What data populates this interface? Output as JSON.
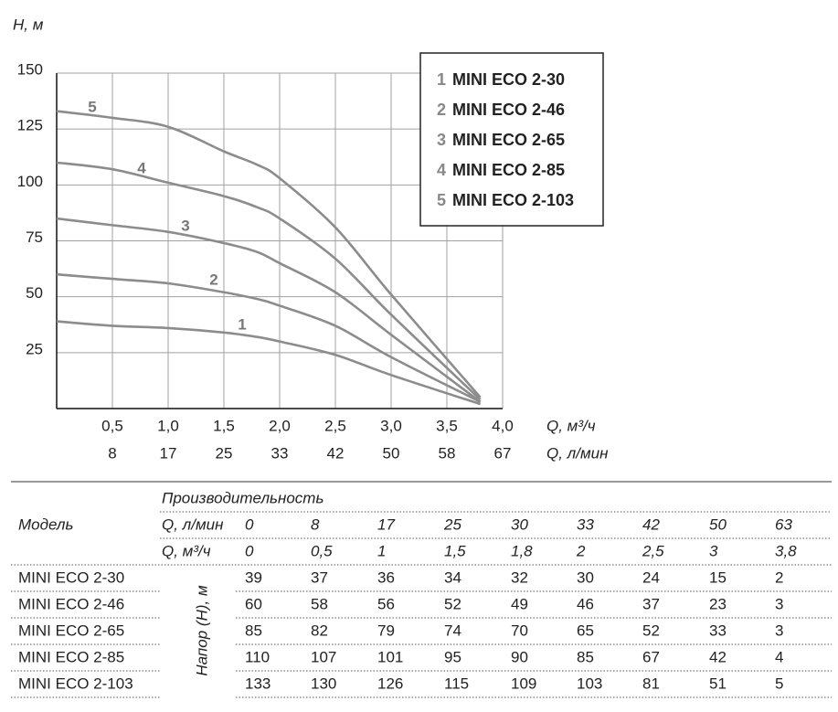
{
  "chart_data": {
    "type": "line",
    "y_label": "H, м",
    "x_label": "Q, м³/ч",
    "x2_label": "Q, л/мин",
    "x": [
      0,
      0.5,
      1,
      1.5,
      1.8,
      2,
      2.5,
      3,
      3.8
    ],
    "series": [
      {
        "label": "1",
        "name": "MINI ECO 2-30",
        "color": "#8c8c8c",
        "values": [
          39,
          37,
          36,
          34,
          32,
          30,
          24,
          15,
          2
        ]
      },
      {
        "label": "2",
        "name": "MINI ECO 2-46",
        "color": "#8c8c8c",
        "values": [
          60,
          58,
          56,
          52,
          49,
          46,
          37,
          23,
          3
        ]
      },
      {
        "label": "3",
        "name": "MINI ECO 2-65",
        "color": "#8c8c8c",
        "values": [
          85,
          82,
          79,
          74,
          70,
          65,
          52,
          33,
          3
        ]
      },
      {
        "label": "4",
        "name": "MINI ECO 2-85",
        "color": "#8c8c8c",
        "values": [
          110,
          107,
          101,
          95,
          90,
          85,
          67,
          42,
          4
        ]
      },
      {
        "label": "5",
        "name": "MINI ECO 2-103",
        "color": "#8c8c8c",
        "values": [
          133,
          130,
          126,
          115,
          109,
          103,
          81,
          51,
          5
        ]
      }
    ],
    "xlim": [
      0,
      4
    ],
    "ylim": [
      0,
      150
    ],
    "xticks": [
      {
        "value": 0.5,
        "label": "0,5"
      },
      {
        "value": 1,
        "label": "1,0"
      },
      {
        "value": 1.5,
        "label": "1,5"
      },
      {
        "value": 2,
        "label": "2,0"
      },
      {
        "value": 2.5,
        "label": "2,5"
      },
      {
        "value": 3,
        "label": "3,0"
      },
      {
        "value": 3.5,
        "label": "3,5"
      },
      {
        "value": 4,
        "label": "4,0"
      }
    ],
    "x2ticks": [
      8,
      17,
      25,
      33,
      42,
      50,
      58,
      67
    ],
    "yticks": [
      25,
      50,
      75,
      100,
      125,
      150
    ],
    "grid": true
  },
  "table": {
    "model_header": "Модель",
    "group_header": "Производительность",
    "head_label": "Напор (H), м",
    "flow_rows": [
      {
        "label": "Q, л/мин",
        "values": [
          "0",
          "8",
          "17",
          "25",
          "30",
          "33",
          "42",
          "50",
          "63"
        ]
      },
      {
        "label": "Q, м³/ч",
        "values": [
          "0",
          "0,5",
          "1",
          "1,5",
          "1,8",
          "2",
          "2,5",
          "3",
          "3,8"
        ]
      }
    ],
    "rows": [
      {
        "model": "MINI ECO 2-30",
        "values": [
          "39",
          "37",
          "36",
          "34",
          "32",
          "30",
          "24",
          "15",
          "2"
        ]
      },
      {
        "model": "MINI ECO 2-46",
        "values": [
          "60",
          "58",
          "56",
          "52",
          "49",
          "46",
          "37",
          "23",
          "3"
        ]
      },
      {
        "model": "MINI ECO 2-65",
        "values": [
          "85",
          "82",
          "79",
          "74",
          "70",
          "65",
          "52",
          "33",
          "3"
        ]
      },
      {
        "model": "MINI ECO 2-85",
        "values": [
          "110",
          "107",
          "101",
          "95",
          "90",
          "85",
          "67",
          "42",
          "4"
        ]
      },
      {
        "model": "MINI ECO 2-103",
        "values": [
          "133",
          "130",
          "126",
          "115",
          "109",
          "103",
          "81",
          "51",
          "5"
        ]
      }
    ]
  }
}
